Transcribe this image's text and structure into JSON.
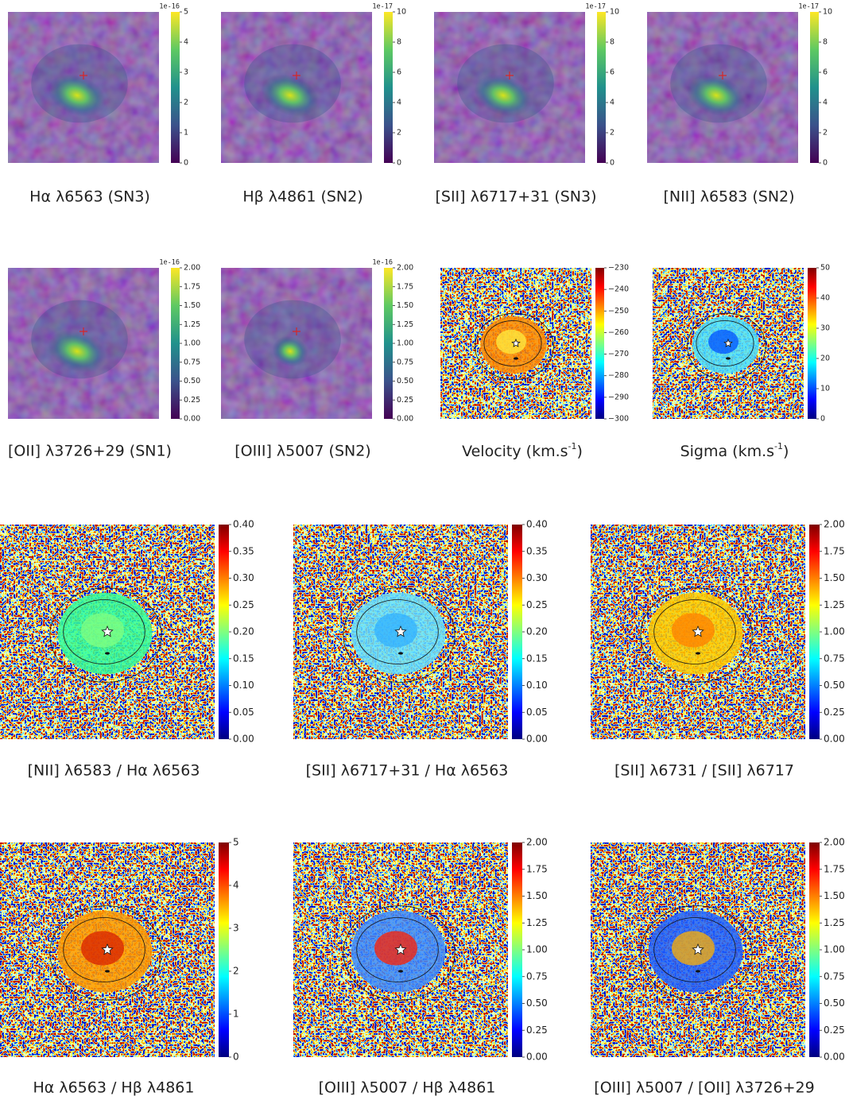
{
  "panels": [
    {
      "caption": "Hα λ6563 (SN3)",
      "colormap": "viridis",
      "offset": "1e-16",
      "clim": [
        0,
        5
      ],
      "ticks": [
        0,
        1,
        2,
        3,
        4,
        5
      ]
    },
    {
      "caption": "Hβ λ4861 (SN2)",
      "colormap": "viridis",
      "offset": "1e-17",
      "clim": [
        0,
        10
      ],
      "ticks": [
        0,
        2,
        4,
        6,
        8,
        10
      ]
    },
    {
      "caption": "[SII] λ6717+31 (SN3)",
      "colormap": "viridis",
      "offset": "1e-17",
      "clim": [
        0,
        10
      ],
      "ticks": [
        0,
        2,
        4,
        6,
        8,
        10
      ]
    },
    {
      "caption": "[NII] λ6583 (SN2)",
      "colormap": "viridis",
      "offset": "1e-17",
      "clim": [
        0,
        10
      ],
      "ticks": [
        0,
        2,
        4,
        6,
        8,
        10
      ]
    },
    {
      "caption": "[OII] λ3726+29 (SN1)",
      "colormap": "viridis",
      "offset": "1e-16",
      "clim": [
        0,
        2
      ],
      "ticks": [
        {
          "value": 0,
          "label": "0.00"
        },
        {
          "value": 0.25,
          "label": "0.25"
        },
        {
          "value": 0.5,
          "label": "0.50"
        },
        {
          "value": 0.75,
          "label": "0.75"
        },
        {
          "value": 1,
          "label": "1.00"
        },
        {
          "value": 1.25,
          "label": "1.25"
        },
        {
          "value": 1.5,
          "label": "1.50"
        },
        {
          "value": 1.75,
          "label": "1.75"
        },
        {
          "value": 2,
          "label": "2.00"
        }
      ]
    },
    {
      "caption": "[OIII] λ5007 (SN2)",
      "colormap": "viridis",
      "offset": "1e-16",
      "clim": [
        0,
        2
      ],
      "ticks": [
        {
          "value": 0,
          "label": "0.00"
        },
        {
          "value": 0.25,
          "label": "0.25"
        },
        {
          "value": 0.5,
          "label": "0.50"
        },
        {
          "value": 0.75,
          "label": "0.75"
        },
        {
          "value": 1,
          "label": "1.00"
        },
        {
          "value": 1.25,
          "label": "1.25"
        },
        {
          "value": 1.5,
          "label": "1.50"
        },
        {
          "value": 1.75,
          "label": "1.75"
        },
        {
          "value": 2,
          "label": "2.00"
        }
      ]
    },
    {
      "caption": [
        "Velocity (km.s",
        "-1",
        ")"
      ],
      "colormap": "jet",
      "clim": [
        -300,
        -230
      ],
      "ticks": [
        {
          "value": -300,
          "label": "−300"
        },
        {
          "value": -290,
          "label": "−290"
        },
        {
          "value": -280,
          "label": "−280"
        },
        {
          "value": -270,
          "label": "−270"
        },
        {
          "value": -260,
          "label": "−260"
        },
        {
          "value": -250,
          "label": "−250"
        },
        {
          "value": -240,
          "label": "−240"
        },
        {
          "value": -230,
          "label": "−230"
        }
      ]
    },
    {
      "caption": [
        "Sigma (km.s",
        "-1",
        ")"
      ],
      "colormap": "jet",
      "clim": [
        0,
        50
      ],
      "ticks": [
        0,
        10,
        20,
        30,
        40,
        50
      ]
    },
    {
      "caption": "[NII] λ6583 / Hα λ6563",
      "colormap": "jet",
      "clim": [
        0,
        0.4
      ],
      "ticks": [
        {
          "value": 0,
          "label": "0.00"
        },
        {
          "value": 0.05,
          "label": "0.05"
        },
        {
          "value": 0.1,
          "label": "0.10"
        },
        {
          "value": 0.15,
          "label": "0.15"
        },
        {
          "value": 0.2,
          "label": "0.20"
        },
        {
          "value": 0.25,
          "label": "0.25"
        },
        {
          "value": 0.3,
          "label": "0.30"
        },
        {
          "value": 0.35,
          "label": "0.35"
        },
        {
          "value": 0.4,
          "label": "0.40"
        }
      ]
    },
    {
      "caption": "[SII] λ6717+31 / Hα λ6563",
      "colormap": "jet",
      "clim": [
        0,
        0.4
      ],
      "ticks": [
        {
          "value": 0,
          "label": "0.00"
        },
        {
          "value": 0.05,
          "label": "0.05"
        },
        {
          "value": 0.1,
          "label": "0.10"
        },
        {
          "value": 0.15,
          "label": "0.15"
        },
        {
          "value": 0.2,
          "label": "0.20"
        },
        {
          "value": 0.25,
          "label": "0.25"
        },
        {
          "value": 0.3,
          "label": "0.30"
        },
        {
          "value": 0.35,
          "label": "0.35"
        },
        {
          "value": 0.4,
          "label": "0.40"
        }
      ]
    },
    {
      "caption": "[SII] λ6731 / [SII] λ6717",
      "colormap": "jet",
      "clim": [
        0,
        2
      ],
      "ticks": [
        {
          "value": 0,
          "label": "0.00"
        },
        {
          "value": 0.25,
          "label": "0.25"
        },
        {
          "value": 0.5,
          "label": "0.50"
        },
        {
          "value": 0.75,
          "label": "0.75"
        },
        {
          "value": 1,
          "label": "1.00"
        },
        {
          "value": 1.25,
          "label": "1.25"
        },
        {
          "value": 1.5,
          "label": "1.50"
        },
        {
          "value": 1.75,
          "label": "1.75"
        },
        {
          "value": 2,
          "label": "2.00"
        }
      ]
    },
    {
      "caption": "Hα λ6563 / Hβ λ4861",
      "colormap": "jet",
      "clim": [
        0,
        5
      ],
      "ticks": [
        0,
        1,
        2,
        3,
        4,
        5
      ]
    },
    {
      "caption": "[OIII] λ5007 / Hβ λ4861",
      "colormap": "jet",
      "clim": [
        0,
        2
      ],
      "ticks": [
        {
          "value": 0,
          "label": "0.00"
        },
        {
          "value": 0.25,
          "label": "0.25"
        },
        {
          "value": 0.5,
          "label": "0.50"
        },
        {
          "value": 0.75,
          "label": "0.75"
        },
        {
          "value": 1,
          "label": "1.00"
        },
        {
          "value": 1.25,
          "label": "1.25"
        },
        {
          "value": 1.5,
          "label": "1.50"
        },
        {
          "value": 1.75,
          "label": "1.75"
        },
        {
          "value": 2,
          "label": "2.00"
        }
      ]
    },
    {
      "caption": "[OIII] λ5007 / [OII] λ3726+29",
      "colormap": "jet",
      "clim": [
        0,
        2
      ],
      "ticks": [
        {
          "value": 0,
          "label": "0.00"
        },
        {
          "value": 0.25,
          "label": "0.25"
        },
        {
          "value": 0.5,
          "label": "0.50"
        },
        {
          "value": 0.75,
          "label": "0.75"
        },
        {
          "value": 1,
          "label": "1.00"
        },
        {
          "value": 1.25,
          "label": "1.25"
        },
        {
          "value": 1.5,
          "label": "1.50"
        },
        {
          "value": 1.75,
          "label": "1.75"
        },
        {
          "value": 2,
          "label": "2.00"
        }
      ]
    }
  ]
}
